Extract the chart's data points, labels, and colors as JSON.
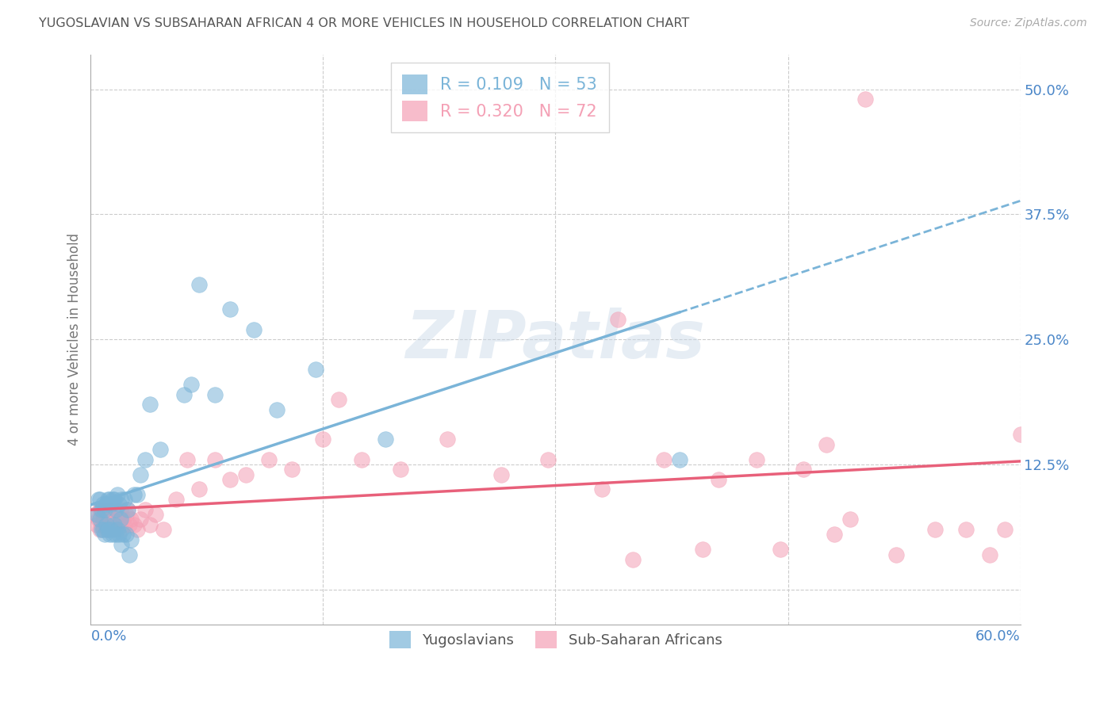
{
  "title": "YUGOSLAVIAN VS SUBSAHARAN AFRICAN 4 OR MORE VEHICLES IN HOUSEHOLD CORRELATION CHART",
  "source": "Source: ZipAtlas.com",
  "ylabel": "4 or more Vehicles in Household",
  "right_yticks": [
    0.0,
    0.125,
    0.25,
    0.375,
    0.5
  ],
  "right_yticklabels": [
    "",
    "12.5%",
    "25.0%",
    "37.5%",
    "50.0%"
  ],
  "xlim": [
    0.0,
    0.6
  ],
  "ylim": [
    -0.035,
    0.535
  ],
  "legend_blue_label": "R = 0.109   N = 53",
  "legend_pink_label": "R = 0.320   N = 72",
  "yugoslavian_color": "#7ab4d8",
  "subsaharan_color": "#f4a0b5",
  "watermark": "ZIPatlas",
  "background_color": "#ffffff",
  "grid_color": "#cccccc",
  "title_color": "#555555",
  "axis_label_color": "#4a86c8",
  "yugoslav_x": [
    0.004,
    0.005,
    0.006,
    0.006,
    0.007,
    0.007,
    0.008,
    0.008,
    0.009,
    0.009,
    0.01,
    0.01,
    0.011,
    0.011,
    0.012,
    0.012,
    0.013,
    0.013,
    0.014,
    0.014,
    0.015,
    0.015,
    0.016,
    0.016,
    0.017,
    0.017,
    0.018,
    0.018,
    0.019,
    0.02,
    0.02,
    0.021,
    0.022,
    0.023,
    0.024,
    0.025,
    0.026,
    0.028,
    0.03,
    0.032,
    0.035,
    0.038,
    0.045,
    0.06,
    0.065,
    0.07,
    0.08,
    0.09,
    0.105,
    0.12,
    0.145,
    0.19,
    0.38
  ],
  "yugoslav_y": [
    0.075,
    0.09,
    0.09,
    0.07,
    0.08,
    0.06,
    0.085,
    0.06,
    0.08,
    0.055,
    0.085,
    0.065,
    0.09,
    0.06,
    0.09,
    0.055,
    0.085,
    0.06,
    0.09,
    0.055,
    0.09,
    0.065,
    0.08,
    0.055,
    0.095,
    0.06,
    0.085,
    0.055,
    0.07,
    0.09,
    0.045,
    0.055,
    0.09,
    0.055,
    0.08,
    0.035,
    0.05,
    0.095,
    0.095,
    0.115,
    0.13,
    0.185,
    0.14,
    0.195,
    0.205,
    0.305,
    0.195,
    0.28,
    0.26,
    0.18,
    0.22,
    0.15,
    0.13
  ],
  "subsaharan_x": [
    0.003,
    0.004,
    0.005,
    0.006,
    0.006,
    0.007,
    0.007,
    0.008,
    0.009,
    0.009,
    0.01,
    0.01,
    0.011,
    0.011,
    0.012,
    0.012,
    0.013,
    0.014,
    0.015,
    0.015,
    0.016,
    0.017,
    0.018,
    0.019,
    0.02,
    0.021,
    0.022,
    0.023,
    0.024,
    0.025,
    0.026,
    0.028,
    0.03,
    0.032,
    0.035,
    0.038,
    0.042,
    0.047,
    0.055,
    0.062,
    0.07,
    0.08,
    0.09,
    0.1,
    0.115,
    0.13,
    0.15,
    0.175,
    0.2,
    0.23,
    0.265,
    0.295,
    0.33,
    0.34,
    0.37,
    0.405,
    0.43,
    0.46,
    0.475,
    0.5,
    0.52,
    0.545,
    0.565,
    0.58,
    0.59,
    0.6,
    0.445,
    0.48,
    0.35,
    0.49,
    0.395,
    0.16
  ],
  "subsaharan_y": [
    0.075,
    0.065,
    0.07,
    0.06,
    0.08,
    0.065,
    0.08,
    0.07,
    0.065,
    0.08,
    0.06,
    0.075,
    0.065,
    0.08,
    0.06,
    0.075,
    0.065,
    0.06,
    0.07,
    0.08,
    0.06,
    0.07,
    0.065,
    0.08,
    0.06,
    0.07,
    0.065,
    0.075,
    0.08,
    0.065,
    0.07,
    0.065,
    0.06,
    0.07,
    0.08,
    0.065,
    0.075,
    0.06,
    0.09,
    0.13,
    0.1,
    0.13,
    0.11,
    0.115,
    0.13,
    0.12,
    0.15,
    0.13,
    0.12,
    0.15,
    0.115,
    0.13,
    0.1,
    0.27,
    0.13,
    0.11,
    0.13,
    0.12,
    0.145,
    0.49,
    0.035,
    0.06,
    0.06,
    0.035,
    0.06,
    0.155,
    0.04,
    0.055,
    0.03,
    0.07,
    0.04,
    0.19
  ]
}
